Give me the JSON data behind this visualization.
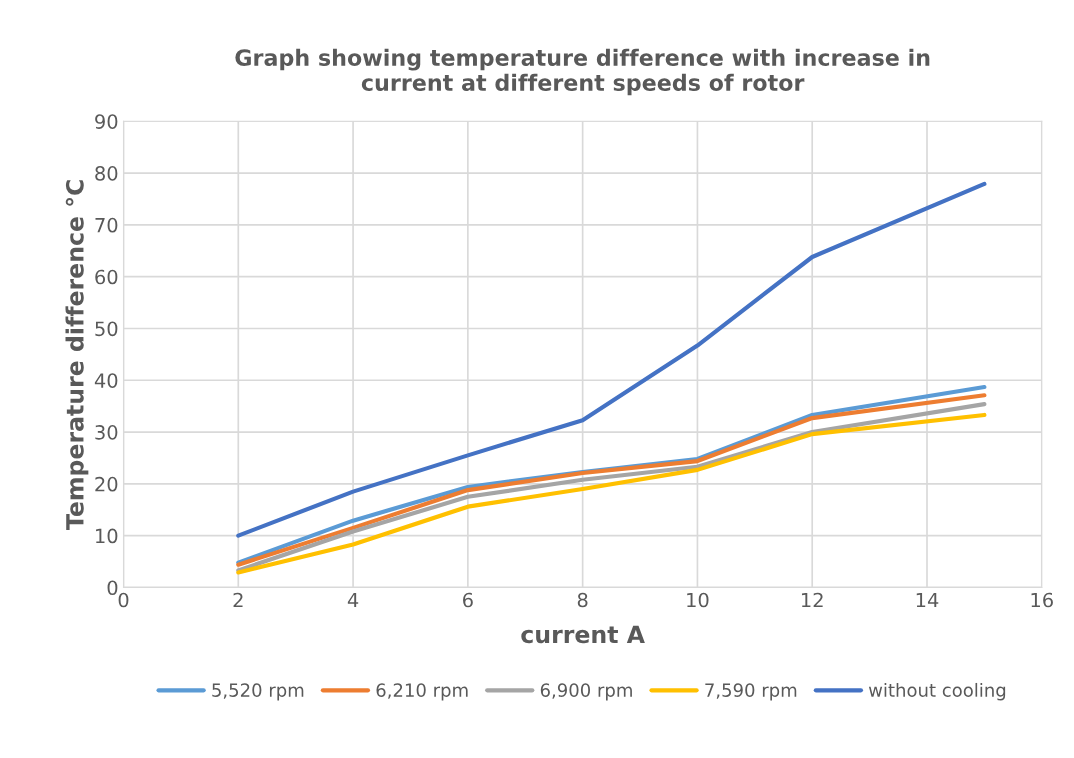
{
  "chart_data": {
    "type": "line",
    "title": "Graph showing temperature difference with increase in\ncurrent at different speeds of rotor",
    "xlabel": "current A",
    "ylabel": "Temperature difference °C",
    "xlim": [
      0,
      16
    ],
    "xticks": [
      0,
      2,
      4,
      6,
      8,
      10,
      12,
      14,
      16
    ],
    "ylim": [
      0,
      90
    ],
    "yticks": [
      0,
      10,
      20,
      30,
      40,
      50,
      60,
      70,
      80,
      90
    ],
    "grid": true,
    "legend": "bottom",
    "marker": "none",
    "x": [
      2,
      4,
      6,
      8,
      10,
      12,
      15
    ],
    "series": [
      {
        "name": "5,520 rpm",
        "color": "#5b9bd5",
        "values": [
          4.8,
          12.9,
          19.4,
          22.3,
          24.8,
          33.3,
          38.7
        ]
      },
      {
        "name": "6,210 rpm",
        "color": "#ed7d31",
        "values": [
          4.4,
          11.5,
          18.8,
          22.1,
          24.4,
          32.7,
          37.1
        ]
      },
      {
        "name": "6,900 rpm",
        "color": "#a5a5a5",
        "values": [
          3.3,
          10.8,
          17.5,
          20.8,
          23.3,
          30.0,
          35.4
        ]
      },
      {
        "name": "7,590 rpm",
        "color": "#ffc000",
        "values": [
          2.9,
          8.3,
          15.6,
          19.0,
          22.7,
          29.6,
          33.3
        ]
      },
      {
        "name": "without cooling",
        "color": "#4472c4",
        "values": [
          10.0,
          18.5,
          25.5,
          32.3,
          46.7,
          63.8,
          77.9
        ]
      }
    ]
  }
}
